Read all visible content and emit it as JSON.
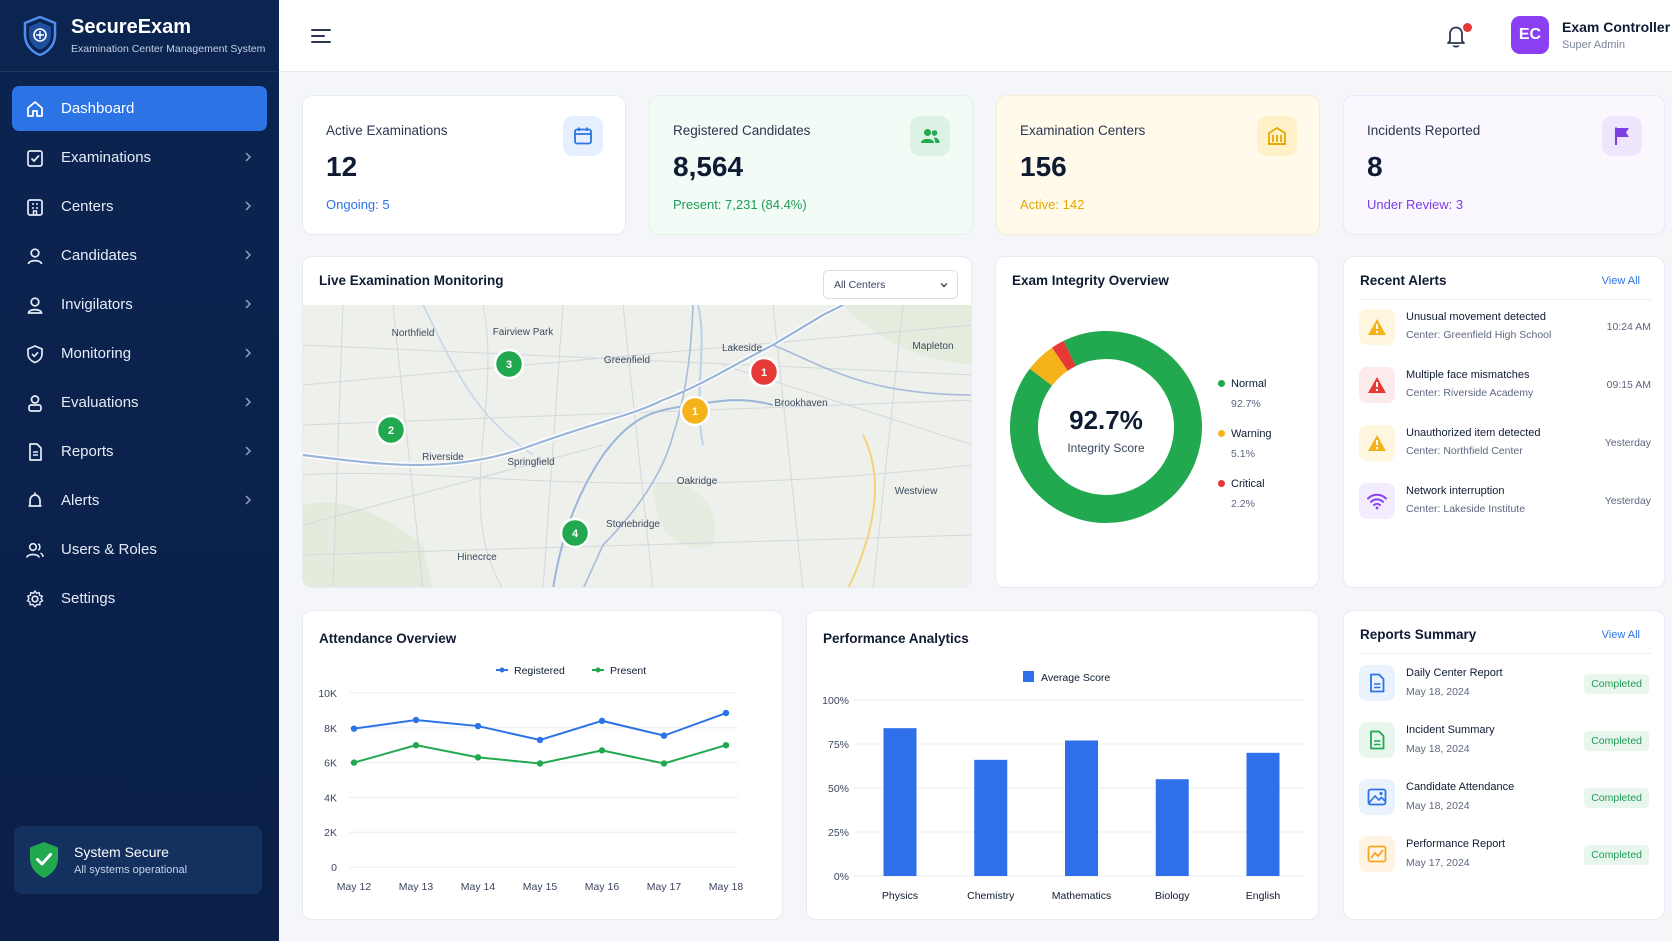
{
  "brand": {
    "name": "SecureExam",
    "subtitle": "Examination Center Management System"
  },
  "sidebar": {
    "items": [
      {
        "label": "Dashboard",
        "icon": "home-icon"
      },
      {
        "label": "Examinations",
        "icon": "checklist-icon"
      },
      {
        "label": "Centers",
        "icon": "building-icon"
      },
      {
        "label": "Candidates",
        "icon": "user-icon"
      },
      {
        "label": "Invigilators",
        "icon": "user-badge-icon"
      },
      {
        "label": "Monitoring",
        "icon": "shield-icon"
      },
      {
        "label": "Evaluations",
        "icon": "user-check-icon"
      },
      {
        "label": "Reports",
        "icon": "document-icon"
      },
      {
        "label": "Alerts",
        "icon": "alarm-icon"
      },
      {
        "label": "Users & Roles",
        "icon": "users-icon"
      },
      {
        "label": "Settings",
        "icon": "gear-icon"
      }
    ],
    "status": {
      "title": "System Secure",
      "subtitle": "All systems operational"
    }
  },
  "header": {
    "user_initials": "EC",
    "user_name": "Exam Controller",
    "user_role": "Super Admin"
  },
  "stats": [
    {
      "label": "Active Examinations",
      "value": "12",
      "sub": "Ongoing: 5",
      "color": "#2c73e6",
      "bg": "#ffffff",
      "icon": "calendar-icon"
    },
    {
      "label": "Registered Candidates",
      "value": "8,564",
      "sub": "Present: 7,231 (84.4%)",
      "color": "#1f9d55",
      "bg": "#f3fbf6",
      "icon": "users-icon"
    },
    {
      "label": "Examination Centers",
      "value": "156",
      "sub": "Active: 142",
      "color": "#e6a700",
      "bg": "#fffaea",
      "icon": "building-icon"
    },
    {
      "label": "Incidents Reported",
      "value": "8",
      "sub": "Under Review: 3",
      "color": "#7b3fe4",
      "bg": "#faf7ff",
      "icon": "flag-icon"
    }
  ],
  "monitoring": {
    "title": "Live Examination Monitoring",
    "filter": "All Centers",
    "places": [
      "Northfield",
      "Fairview Park",
      "Greenfield",
      "Lakeside",
      "Mapleton",
      "Brookhaven",
      "Riverside",
      "Springfield",
      "Oakridge",
      "Westview",
      "Stonebridge",
      "Hinecrce"
    ],
    "markers": [
      "3",
      "2",
      "1",
      "1",
      "4"
    ]
  },
  "integrity": {
    "title": "Exam Integrity Overview",
    "score": "92.7%",
    "score_label": "Integrity Score",
    "segments": [
      {
        "name": "Normal",
        "value": 92.7,
        "display": "92.7%",
        "color": "#22a84f"
      },
      {
        "name": "Warning",
        "value": 5.1,
        "display": "5.1%",
        "color": "#f5b21b"
      },
      {
        "name": "Critical",
        "value": 2.2,
        "display": "2.2%",
        "color": "#e53935"
      }
    ]
  },
  "alerts": {
    "title": "Recent Alerts",
    "view_all": "View All",
    "items": [
      {
        "title": "Unusual movement detected",
        "center": "Center: Greenfield High School",
        "time": "10:24 AM",
        "icon": "warning-icon",
        "color": "#f5b21b",
        "bg": "#fff6e0"
      },
      {
        "title": "Multiple face mismatches",
        "center": "Center: Riverside Academy",
        "time": "09:15 AM",
        "icon": "warning-icon",
        "color": "#e53935",
        "bg": "#fdeaea"
      },
      {
        "title": "Unauthorized item detected",
        "center": "Center: Northfield Center",
        "time": "Yesterday",
        "icon": "warning-icon",
        "color": "#f5b21b",
        "bg": "#fff6e0"
      },
      {
        "title": "Network interruption",
        "center": "Center: Lakeside Institute",
        "time": "Yesterday",
        "icon": "wifi-icon",
        "color": "#8a3ff2",
        "bg": "#f3ecfe"
      }
    ]
  },
  "attendance": {
    "title": "Attendance Overview"
  },
  "performance": {
    "title": "Performance Analytics"
  },
  "reports": {
    "title": "Reports Summary",
    "view_all": "View All",
    "items": [
      {
        "title": "Daily Center Report",
        "date": "May 18, 2024",
        "status": "Completed",
        "icon": "document-icon",
        "color": "#2c73e6",
        "bg": "#eaf2fd"
      },
      {
        "title": "Incident Summary",
        "date": "May 18, 2024",
        "status": "Completed",
        "icon": "document-icon",
        "color": "#22a84f",
        "bg": "#e8f6ee"
      },
      {
        "title": "Candidate Attendance",
        "date": "May 18, 2024",
        "status": "Completed",
        "icon": "image-icon",
        "color": "#2c73e6",
        "bg": "#eaf2fd"
      },
      {
        "title": "Performance Report",
        "date": "May 17, 2024",
        "status": "Completed",
        "icon": "chart-icon",
        "color": "#f5a623",
        "bg": "#fff3e3"
      }
    ]
  },
  "chart_data": [
    {
      "type": "line",
      "title": "Attendance Overview",
      "categories": [
        "May 12",
        "May 13",
        "May 14",
        "May 15",
        "May 16",
        "May 17",
        "May 18"
      ],
      "series": [
        {
          "name": "Registered",
          "values": [
            7950,
            8450,
            8100,
            7300,
            8400,
            7550,
            8850
          ],
          "color": "#2c73e6"
        },
        {
          "name": "Present",
          "values": [
            6000,
            7000,
            6300,
            5950,
            6700,
            5950,
            7000
          ],
          "color": "#22a84f"
        }
      ],
      "yticks": [
        "0",
        "2K",
        "4K",
        "6K",
        "8K",
        "10K"
      ],
      "ylim": [
        0,
        10000
      ],
      "grid": true,
      "legend": "top"
    },
    {
      "type": "bar",
      "title": "Performance Analytics",
      "categories": [
        "Physics",
        "Chemistry",
        "Mathematics",
        "Biology",
        "English"
      ],
      "series": [
        {
          "name": "Average Score",
          "values": [
            84,
            66,
            77,
            55,
            70
          ],
          "color": "#2f6fea"
        }
      ],
      "yticks": [
        "0%",
        "25%",
        "50%",
        "75%",
        "100%"
      ],
      "ylim": [
        0,
        100
      ],
      "grid": true,
      "legend": "top"
    }
  ]
}
